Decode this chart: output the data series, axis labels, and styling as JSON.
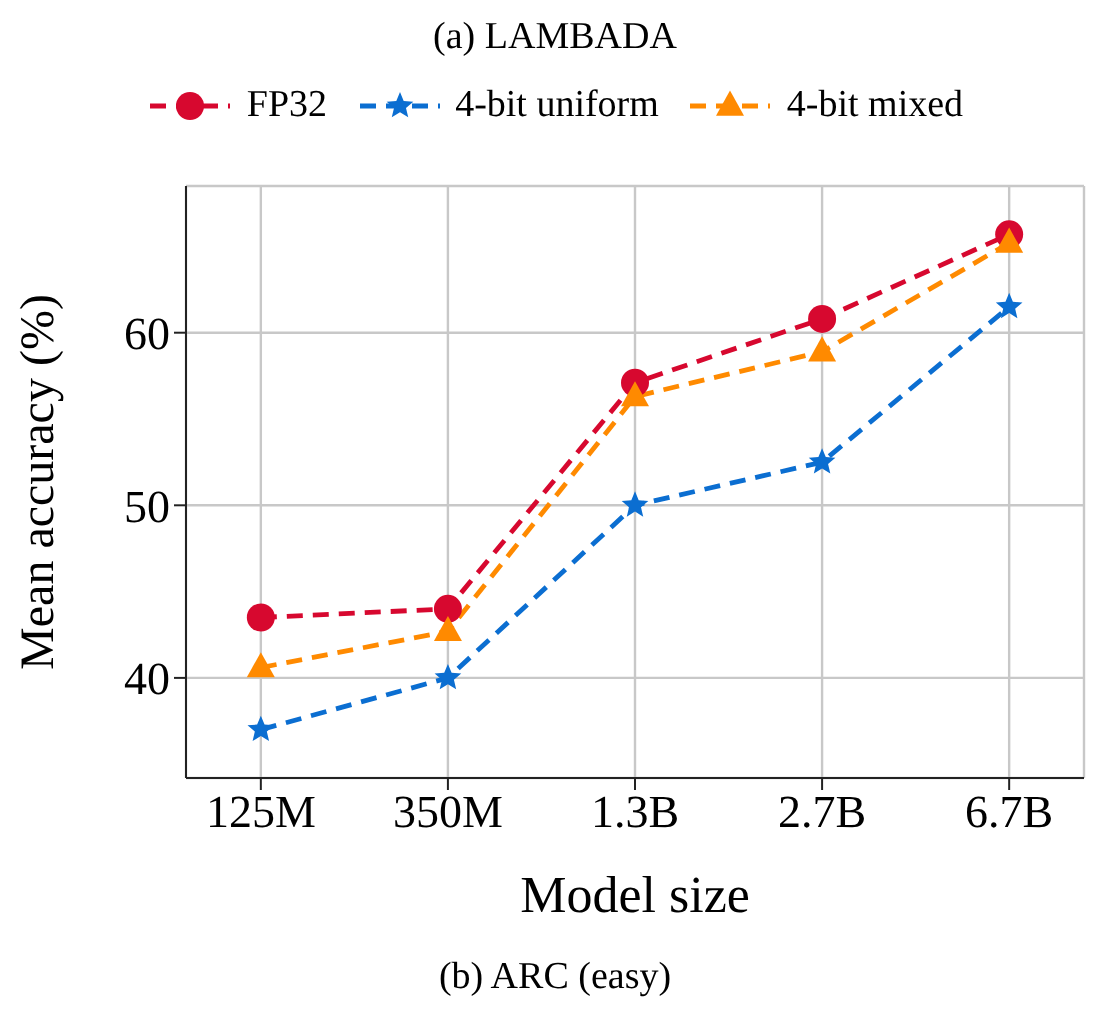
{
  "chart_data": {
    "type": "line",
    "title": "(a) LAMBADA",
    "xlabel": "Model size",
    "ylabel": "Mean accuracy (%)",
    "categories": [
      "125M",
      "350M",
      "1.3B",
      "2.7B",
      "6.7B"
    ],
    "series": [
      {
        "name": "FP32",
        "color": "#d7082f",
        "marker": "circle",
        "values": [
          43.5,
          44.0,
          57.1,
          60.8,
          65.7
        ]
      },
      {
        "name": "4-bit uniform",
        "color": "#0b6ed1",
        "marker": "star",
        "values": [
          37.0,
          40.0,
          50.0,
          52.5,
          61.5
        ]
      },
      {
        "name": "4-bit mixed",
        "color": "#ff8a00",
        "marker": "triangle",
        "values": [
          40.6,
          42.7,
          56.3,
          58.9,
          65.2
        ]
      }
    ],
    "ylim": [
      34.2,
      68.5
    ],
    "yticks": [
      40,
      50,
      60
    ],
    "grid": true,
    "legend": "top",
    "line_style": "dashed",
    "annotations": [
      "(b) ARC (easy)"
    ]
  }
}
